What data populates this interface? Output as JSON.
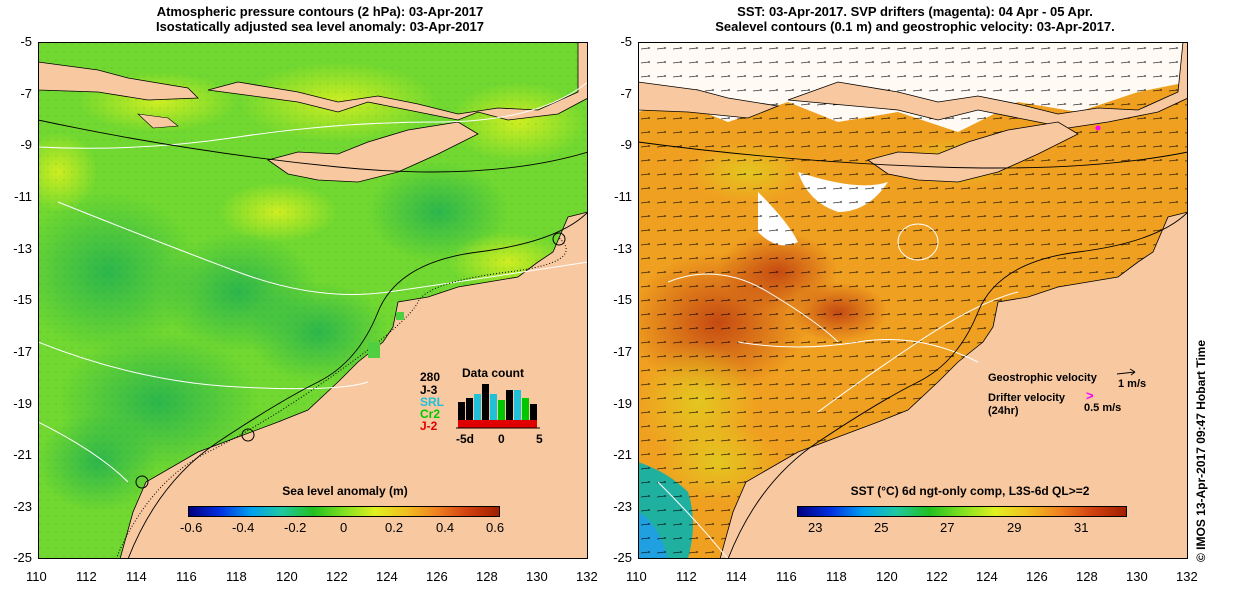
{
  "left_panel": {
    "title_line1": "Atmospheric pressure contours (2 hPa): 03-Apr-2017",
    "title_line2": "Isostatically adjusted sea level anomaly: 03-Apr-2017",
    "colorbar_label": "Sea level anomaly (m)",
    "colorbar_ticks": [
      "-0.6",
      "-0.4",
      "-0.2",
      "0",
      "0.2",
      "0.4",
      "0.6"
    ],
    "data_count": {
      "title": "Data count",
      "max_label": "280",
      "missions": [
        {
          "name": "J-3",
          "color": "#000000"
        },
        {
          "name": "SRL",
          "color": "#20c0d8"
        },
        {
          "name": "Cr2",
          "color": "#00c800"
        },
        {
          "name": "J-2",
          "color": "#e00000"
        }
      ],
      "x_ticks": [
        "-5d",
        "0",
        "5"
      ]
    }
  },
  "right_panel": {
    "title_line1": "SST: 03-Apr-2017. SVP drifters (magenta): 04 Apr - 05 Apr.",
    "title_line2": "Sealevel contours (0.1 m) and geostrophic velocity: 03-Apr-2017.",
    "colorbar_label": "SST (°C) 6d ngt-only comp, L3S-6d QL>=2",
    "colorbar_ticks": [
      "23",
      "25",
      "27",
      "29",
      "31"
    ],
    "legend": {
      "geostrophic_label": "Geostrophic velocity",
      "geostrophic_scale": "1 m/s",
      "drifter_label_line1": "Drifter velocity",
      "drifter_label_line2": "(24hr)",
      "drifter_scale": "0.5 m/s"
    }
  },
  "axes": {
    "lat_labels": [
      "-5",
      "-7",
      "-9",
      "-11",
      "-13",
      "-15",
      "-17",
      "-19",
      "-21",
      "-23",
      "-25"
    ],
    "lon_labels": [
      "110",
      "112",
      "114",
      "116",
      "118",
      "120",
      "122",
      "124",
      "126",
      "128",
      "130",
      "132"
    ]
  },
  "side_credit": "© IMOS 13-Apr-2017 09:47 Hobart Time",
  "colors": {
    "land": "#f8c8a0",
    "sla_low": "#30c040",
    "sla_mid": "#80e020",
    "sla_high": "#d8f020",
    "sst_warm": "#f0a020",
    "sst_hot": "#d06010",
    "sst_cool": "#20a0e0",
    "drifter": "#ff00ff"
  }
}
